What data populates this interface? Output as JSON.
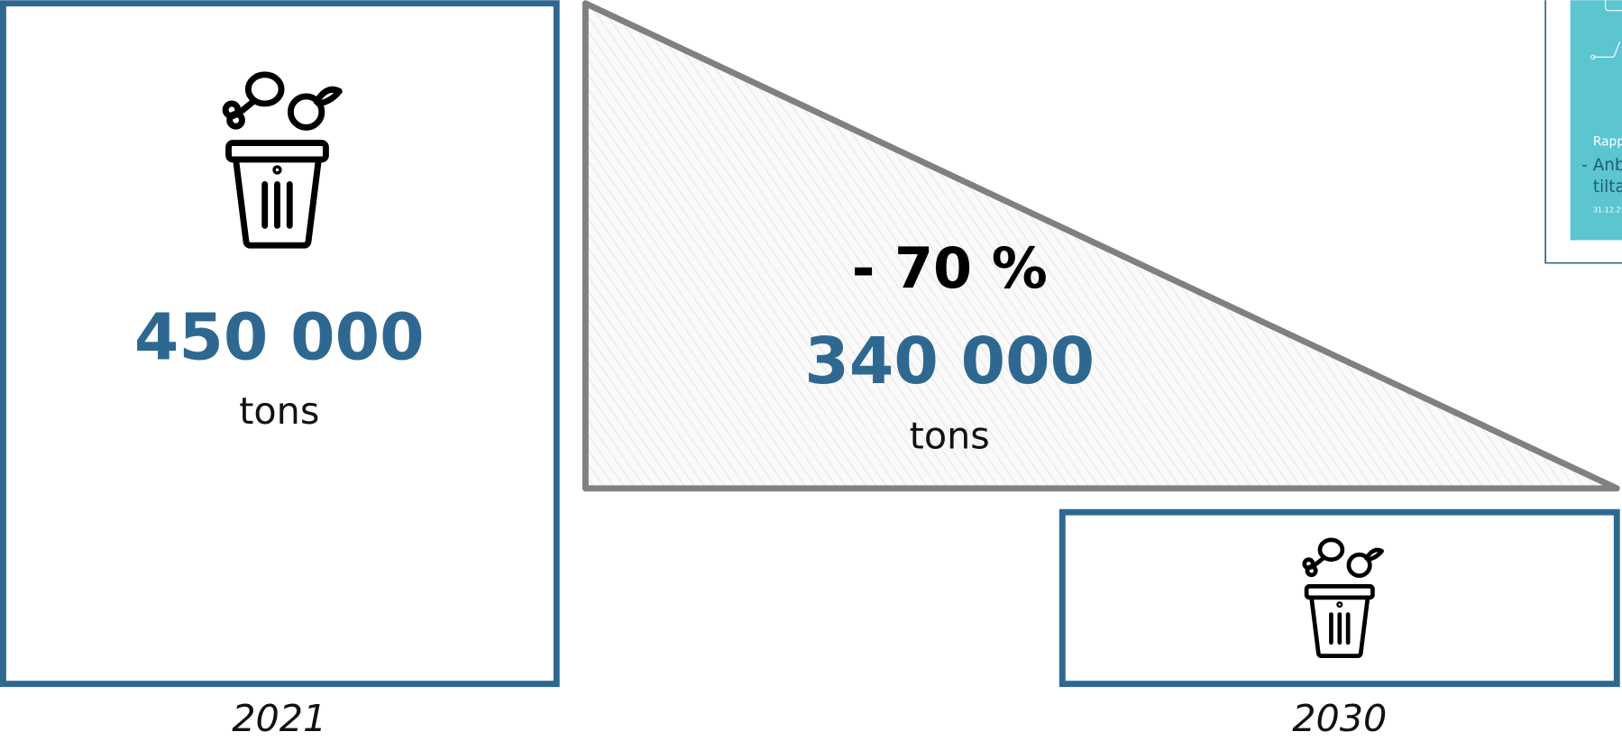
{
  "left": {
    "value": "450 000",
    "unit": "tons",
    "year": "2021"
  },
  "middle": {
    "change": "- 70 %",
    "value": "340 000",
    "unit": "tons"
  },
  "right": {
    "year": "2030"
  },
  "thumbnail": {
    "lines": [
      "Rapp",
      "- Anb",
      "tilta",
      "31.12.23"
    ]
  }
}
